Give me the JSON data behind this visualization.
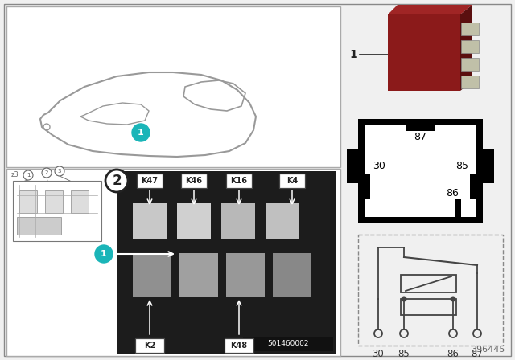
{
  "bg_color": "#f0f0f0",
  "teal_color": "#1ab5b8",
  "part_number": "396445",
  "ref_number": "501460002",
  "relay_body_top": "#7a1515",
  "relay_body_side": "#5a0f0f",
  "outline_gray": "#aaaaaa",
  "dark": "#222222",
  "white": "#ffffff",
  "black": "#000000",
  "photo_bg": "#1c1c1c",
  "fuse_labels_top": [
    "K47",
    "K46",
    "K16",
    "K4"
  ],
  "fuse_labels_bot": [
    "K2",
    "K48"
  ],
  "schematic_labels": [
    "30",
    "85",
    "86",
    "87"
  ],
  "pin_diag_labels": [
    "87",
    "30",
    "85",
    "86"
  ],
  "car_outline": "#999999",
  "sketch_color": "#888888"
}
